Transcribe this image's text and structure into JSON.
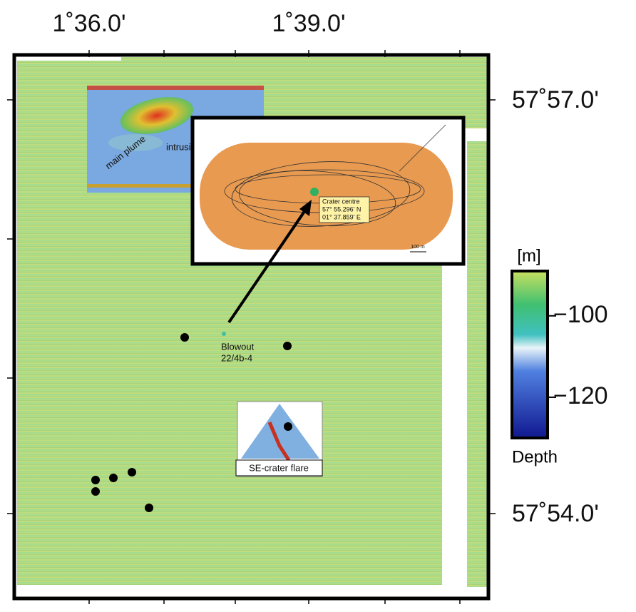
{
  "axes": {
    "top_labels": [
      "1˚36.0'",
      "1˚39.0'"
    ],
    "right_labels": [
      "57˚57.0'",
      "57˚54.0'"
    ]
  },
  "colorbar": {
    "unit": "[m]",
    "label": "Depth",
    "lim": [
      -89,
      -130
    ],
    "ticks": [
      {
        "value": -100,
        "label": "−100"
      },
      {
        "value": -120,
        "label": "−120"
      }
    ]
  },
  "annotations": {
    "blowout": [
      "Blowout",
      "22/4b-4"
    ],
    "plume_inset": [
      "main plume",
      "intrusion"
    ],
    "crater_inset": {
      "box": [
        "Crater centre",
        "57° 55.296' N",
        "01° 37.859' E"
      ],
      "scale": "100 m"
    },
    "flare_inset": "SE-crater flare"
  }
}
